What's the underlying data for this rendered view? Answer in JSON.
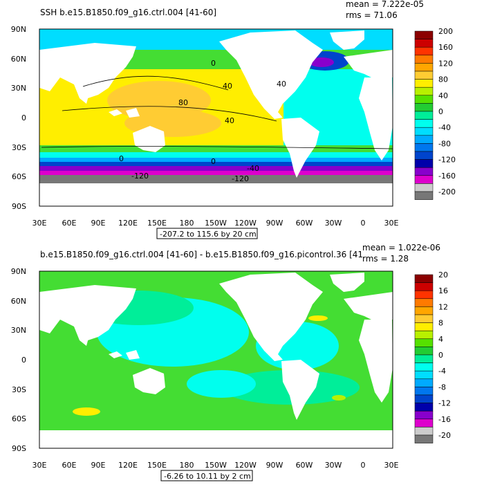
{
  "panels": [
    {
      "id": "top",
      "title": "SSH  b.e15.B1850.f09_g16.ctrl.004 [41-60]",
      "mean": "mean = 7.222e-05",
      "rms": "rms = 71.06",
      "range_note": "-207.2 to 115.6 by 20 cm",
      "colorbar": {
        "levels": [
          "200",
          "160",
          "120",
          "80",
          "40",
          "0",
          "-40",
          "-80",
          "-120",
          "-160",
          "-200"
        ],
        "colors": [
          "#8b0000",
          "#cc0000",
          "#ff3300",
          "#ff7a00",
          "#ffa600",
          "#ffcc33",
          "#ffee00",
          "#b8f000",
          "#55e000",
          "#22cc33",
          "#00ee99",
          "#00ffee",
          "#00ddff",
          "#00aaff",
          "#0077ee",
          "#0044cc",
          "#0000aa",
          "#8800cc",
          "#dd00cc",
          "#cccccc",
          "#777777"
        ]
      },
      "contour_labels": [
        "80",
        "40",
        "40",
        "0",
        "0",
        "40",
        "0",
        "-40",
        "-120",
        "-120"
      ]
    },
    {
      "id": "bottom",
      "title": "b.e15.B1850.f09_g16.ctrl.004 [41-60] - b.e15.B1850.f09_g16.picontrol.36 [41",
      "mean": "mean = 1.022e-06",
      "rms": "rms = 1.28",
      "range_note": "-6.26 to 10.11 by 2 cm",
      "colorbar": {
        "levels": [
          "20",
          "16",
          "12",
          "8",
          "4",
          "0",
          "-4",
          "-8",
          "-12",
          "-16",
          "-20"
        ],
        "colors": [
          "#8b0000",
          "#cc0000",
          "#ff3300",
          "#ff7a00",
          "#ffa600",
          "#ffcc33",
          "#ffee00",
          "#b8f000",
          "#55e000",
          "#22cc33",
          "#00ee99",
          "#00ffee",
          "#00ddff",
          "#00aaff",
          "#0077ee",
          "#0044cc",
          "#0000aa",
          "#8800cc",
          "#dd00cc",
          "#cccccc",
          "#777777"
        ]
      }
    }
  ],
  "axes": {
    "lat_labels": [
      "90N",
      "60N",
      "30N",
      "0",
      "30S",
      "60S",
      "90S"
    ],
    "lon_labels": [
      "30E",
      "60E",
      "90E",
      "120E",
      "150E",
      "180",
      "150W",
      "120W",
      "90W",
      "60W",
      "30W",
      "0",
      "30E"
    ]
  },
  "colors": {
    "ocean_green": "#44dd33",
    "teal": "#00ee99",
    "cyan": "#00ffee",
    "yellow": "#ffee00",
    "orange": "#ffcc33",
    "land": "#ffffff",
    "grey": "#777777"
  }
}
